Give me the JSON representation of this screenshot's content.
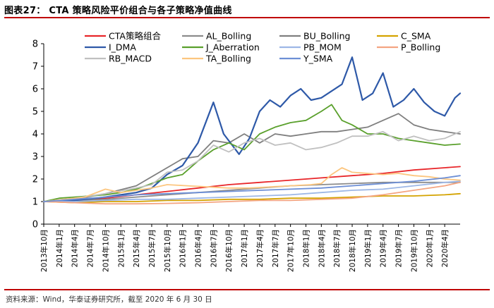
{
  "header": {
    "title": "图表27：  CTA 策略风险平价组合与各子策略净值曲线"
  },
  "footer": {
    "source": "资料来源：Wind，华泰证券研究所，截至 2020 年 6 月 30 日"
  },
  "chart_data": {
    "type": "line",
    "title": "CTA 策略风险平价组合与各子策略净值曲线",
    "xlabel": "",
    "ylabel": "",
    "ylim": [
      0,
      8
    ],
    "yticks": [
      0,
      1,
      2,
      3,
      4,
      5,
      6,
      7,
      8
    ],
    "grid": false,
    "legend_position": "top",
    "x_tick_labels": [
      "2013年10月",
      "2014年1月",
      "2014年4月",
      "2014年7月",
      "2014年10月",
      "2015年1月",
      "2015年4月",
      "2015年7月",
      "2015年10月",
      "2016年1月",
      "2016年4月",
      "2016年7月",
      "2016年10月",
      "2017年1月",
      "2017年4月",
      "2017年7月",
      "2017年10月",
      "2018年1月",
      "2018年4月",
      "2018年7月",
      "2018年10月",
      "2019年1月",
      "2019年4月",
      "2019年7月",
      "2019年10月",
      "2020年1月",
      "2020年4月"
    ],
    "x_range_months": [
      0,
      81
    ],
    "series": [
      {
        "name": "CTA策略组合",
        "color": "#e8262a",
        "points": [
          [
            0,
            1.0
          ],
          [
            6,
            1.08
          ],
          [
            12,
            1.15
          ],
          [
            18,
            1.3
          ],
          [
            24,
            1.45
          ],
          [
            30,
            1.6
          ],
          [
            36,
            1.75
          ],
          [
            42,
            1.85
          ],
          [
            48,
            1.95
          ],
          [
            54,
            2.05
          ],
          [
            60,
            2.15
          ],
          [
            66,
            2.25
          ],
          [
            72,
            2.4
          ],
          [
            78,
            2.5
          ],
          [
            81,
            2.55
          ]
        ]
      },
      {
        "name": "AL_Bolling",
        "color": "#8c8c8c",
        "points": [
          [
            0,
            1.0
          ],
          [
            6,
            1.05
          ],
          [
            12,
            1.1
          ],
          [
            18,
            1.2
          ],
          [
            24,
            1.3
          ],
          [
            30,
            1.4
          ],
          [
            36,
            1.5
          ],
          [
            42,
            1.6
          ],
          [
            48,
            1.7
          ],
          [
            54,
            1.75
          ],
          [
            60,
            1.8
          ],
          [
            66,
            1.85
          ],
          [
            72,
            1.85
          ],
          [
            78,
            1.85
          ],
          [
            81,
            1.85
          ]
        ]
      },
      {
        "name": "BU_Bolling",
        "color": "#7f7f7f",
        "points": [
          [
            0,
            1.0
          ],
          [
            6,
            1.1
          ],
          [
            12,
            1.35
          ],
          [
            18,
            1.7
          ],
          [
            24,
            2.5
          ],
          [
            27,
            2.9
          ],
          [
            30,
            3.0
          ],
          [
            33,
            3.7
          ],
          [
            36,
            3.6
          ],
          [
            39,
            4.0
          ],
          [
            42,
            3.6
          ],
          [
            45,
            4.0
          ],
          [
            48,
            3.9
          ],
          [
            51,
            4.0
          ],
          [
            54,
            4.1
          ],
          [
            57,
            4.1
          ],
          [
            60,
            4.2
          ],
          [
            63,
            4.3
          ],
          [
            66,
            4.6
          ],
          [
            69,
            4.9
          ],
          [
            72,
            4.4
          ],
          [
            75,
            4.2
          ],
          [
            78,
            4.1
          ],
          [
            81,
            4.0
          ]
        ]
      },
      {
        "name": "C_SMA",
        "color": "#d4a300",
        "points": [
          [
            0,
            1.0
          ],
          [
            6,
            0.95
          ],
          [
            12,
            1.0
          ],
          [
            18,
            1.0
          ],
          [
            24,
            1.05
          ],
          [
            30,
            1.05
          ],
          [
            36,
            1.1
          ],
          [
            42,
            1.1
          ],
          [
            48,
            1.15
          ],
          [
            54,
            1.15
          ],
          [
            60,
            1.2
          ],
          [
            66,
            1.25
          ],
          [
            72,
            1.25
          ],
          [
            78,
            1.3
          ],
          [
            81,
            1.35
          ]
        ]
      },
      {
        "name": "I_DMA",
        "color": "#2e59a8",
        "points": [
          [
            0,
            1.0
          ],
          [
            6,
            1.05
          ],
          [
            12,
            1.2
          ],
          [
            18,
            1.4
          ],
          [
            21,
            1.6
          ],
          [
            24,
            2.2
          ],
          [
            27,
            2.6
          ],
          [
            30,
            3.6
          ],
          [
            33,
            5.4
          ],
          [
            35,
            4.0
          ],
          [
            38,
            3.1
          ],
          [
            40,
            3.8
          ],
          [
            42,
            5.0
          ],
          [
            44,
            5.5
          ],
          [
            46,
            5.2
          ],
          [
            48,
            5.7
          ],
          [
            50,
            6.0
          ],
          [
            52,
            5.5
          ],
          [
            54,
            5.6
          ],
          [
            56,
            5.9
          ],
          [
            58,
            6.2
          ],
          [
            60,
            7.4
          ],
          [
            62,
            5.5
          ],
          [
            64,
            5.8
          ],
          [
            66,
            6.7
          ],
          [
            68,
            5.2
          ],
          [
            70,
            5.5
          ],
          [
            72,
            6.0
          ],
          [
            74,
            5.4
          ],
          [
            76,
            5.0
          ],
          [
            78,
            4.8
          ],
          [
            80,
            5.6
          ],
          [
            81,
            5.8
          ]
        ]
      },
      {
        "name": "J_Aberration",
        "color": "#5aa02c",
        "points": [
          [
            0,
            1.0
          ],
          [
            3,
            1.15
          ],
          [
            6,
            1.2
          ],
          [
            9,
            1.25
          ],
          [
            12,
            1.3
          ],
          [
            15,
            1.4
          ],
          [
            18,
            1.55
          ],
          [
            21,
            1.8
          ],
          [
            24,
            2.05
          ],
          [
            27,
            2.2
          ],
          [
            30,
            2.8
          ],
          [
            33,
            3.3
          ],
          [
            36,
            3.6
          ],
          [
            39,
            3.3
          ],
          [
            42,
            4.0
          ],
          [
            45,
            4.3
          ],
          [
            48,
            4.5
          ],
          [
            51,
            4.6
          ],
          [
            54,
            5.0
          ],
          [
            56,
            5.3
          ],
          [
            58,
            4.6
          ],
          [
            60,
            4.4
          ],
          [
            63,
            4.0
          ],
          [
            66,
            4.0
          ],
          [
            69,
            3.8
          ],
          [
            72,
            3.7
          ],
          [
            75,
            3.6
          ],
          [
            78,
            3.5
          ],
          [
            81,
            3.55
          ]
        ]
      },
      {
        "name": "PB_MOM",
        "color": "#9db7e6",
        "points": [
          [
            0,
            1.0
          ],
          [
            6,
            1.0
          ],
          [
            12,
            1.05
          ],
          [
            18,
            1.1
          ],
          [
            24,
            1.1
          ],
          [
            30,
            1.15
          ],
          [
            36,
            1.2
          ],
          [
            42,
            1.25
          ],
          [
            48,
            1.3
          ],
          [
            54,
            1.4
          ],
          [
            60,
            1.5
          ],
          [
            66,
            1.55
          ],
          [
            72,
            1.7
          ],
          [
            78,
            1.85
          ],
          [
            81,
            1.9
          ]
        ]
      },
      {
        "name": "P_Bolling",
        "color": "#f4a582",
        "points": [
          [
            0,
            1.0
          ],
          [
            6,
            0.95
          ],
          [
            12,
            0.9
          ],
          [
            18,
            0.9
          ],
          [
            24,
            0.92
          ],
          [
            30,
            0.95
          ],
          [
            36,
            1.0
          ],
          [
            42,
            1.05
          ],
          [
            48,
            1.05
          ],
          [
            54,
            1.1
          ],
          [
            60,
            1.15
          ],
          [
            66,
            1.3
          ],
          [
            72,
            1.5
          ],
          [
            78,
            1.7
          ],
          [
            81,
            1.85
          ]
        ]
      },
      {
        "name": "RB_MACD",
        "color": "#c0c0c0",
        "points": [
          [
            0,
            1.0
          ],
          [
            6,
            1.15
          ],
          [
            12,
            1.35
          ],
          [
            18,
            1.6
          ],
          [
            21,
            1.75
          ],
          [
            24,
            2.3
          ],
          [
            27,
            2.4
          ],
          [
            30,
            2.8
          ],
          [
            33,
            3.5
          ],
          [
            36,
            3.2
          ],
          [
            39,
            3.6
          ],
          [
            42,
            3.8
          ],
          [
            45,
            3.5
          ],
          [
            48,
            3.6
          ],
          [
            51,
            3.3
          ],
          [
            54,
            3.4
          ],
          [
            57,
            3.6
          ],
          [
            60,
            3.9
          ],
          [
            63,
            3.9
          ],
          [
            66,
            4.1
          ],
          [
            69,
            3.7
          ],
          [
            72,
            3.9
          ],
          [
            75,
            3.7
          ],
          [
            78,
            3.8
          ],
          [
            81,
            4.1
          ]
        ]
      },
      {
        "name": "TA_Bolling",
        "color": "#fcc67f",
        "points": [
          [
            0,
            1.0
          ],
          [
            4,
            1.1
          ],
          [
            8,
            1.2
          ],
          [
            12,
            1.55
          ],
          [
            15,
            1.4
          ],
          [
            18,
            1.5
          ],
          [
            21,
            1.6
          ],
          [
            24,
            1.75
          ],
          [
            28,
            1.7
          ],
          [
            32,
            1.65
          ],
          [
            36,
            1.6
          ],
          [
            40,
            1.6
          ],
          [
            44,
            1.65
          ],
          [
            48,
            1.7
          ],
          [
            52,
            1.75
          ],
          [
            54,
            1.8
          ],
          [
            56,
            2.2
          ],
          [
            58,
            2.5
          ],
          [
            60,
            2.3
          ],
          [
            63,
            2.25
          ],
          [
            66,
            2.2
          ],
          [
            69,
            2.25
          ],
          [
            72,
            2.15
          ],
          [
            75,
            2.1
          ],
          [
            78,
            2.0
          ],
          [
            81,
            1.95
          ]
        ]
      },
      {
        "name": "Y_SMA",
        "color": "#6d8fd6",
        "points": [
          [
            0,
            1.0
          ],
          [
            6,
            1.1
          ],
          [
            12,
            1.2
          ],
          [
            18,
            1.3
          ],
          [
            24,
            1.35
          ],
          [
            30,
            1.4
          ],
          [
            36,
            1.45
          ],
          [
            42,
            1.5
          ],
          [
            48,
            1.55
          ],
          [
            54,
            1.6
          ],
          [
            60,
            1.7
          ],
          [
            66,
            1.8
          ],
          [
            72,
            1.9
          ],
          [
            78,
            2.05
          ],
          [
            81,
            2.15
          ]
        ]
      }
    ]
  }
}
